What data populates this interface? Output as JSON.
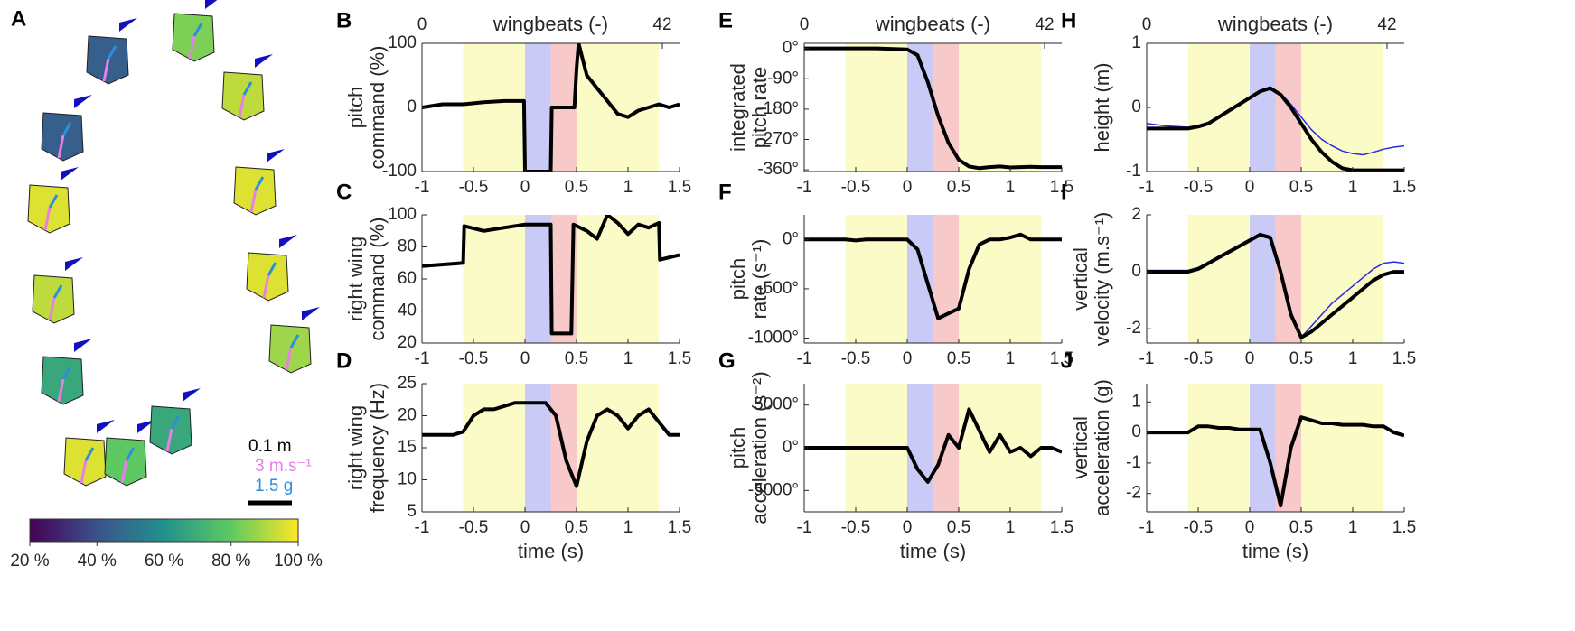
{
  "panel_a": {
    "label": "A",
    "scale_labels": [
      "0.1 m",
      "3 m.s⁻¹",
      "1.5 g"
    ],
    "colorbar": {
      "lim": [
        20,
        100
      ],
      "ticks": [
        {
          "value": 20,
          "label": "20 %"
        },
        {
          "value": 40,
          "label": "40 %"
        },
        {
          "value": 60,
          "label": "60 %"
        },
        {
          "value": 80,
          "label": "80 %"
        },
        {
          "value": 100,
          "label": "100 %"
        }
      ]
    }
  },
  "chart_data": [
    {
      "type": "line",
      "label": "B",
      "ylabel": [
        "pitch",
        "command (%)"
      ],
      "x2label": "wingbeats (-)",
      "x2lim": [
        0,
        45
      ],
      "x2ticks": [
        0,
        42
      ],
      "xlim": [
        -1,
        1.5
      ],
      "xticks": [
        -1,
        -0.5,
        0,
        0.5,
        1,
        1.5
      ],
      "ylim": [
        -100,
        100
      ],
      "yticks": [
        -100,
        0,
        100
      ],
      "regions": [
        {
          "start": -0.6,
          "end": 0,
          "color": "#fbfbc8"
        },
        {
          "start": 0,
          "end": 0.25,
          "color": "#cacaf6"
        },
        {
          "start": 0.25,
          "end": 0.5,
          "color": "#f8c9c9"
        },
        {
          "start": 0.5,
          "end": 1.3,
          "color": "#fbfbc8"
        }
      ],
      "x": [
        -1,
        -0.8,
        -0.6,
        -0.4,
        -0.2,
        -0.01,
        0,
        0.25,
        0.26,
        0.48,
        0.5,
        0.52,
        0.6,
        0.7,
        0.8,
        0.9,
        1.0,
        1.1,
        1.2,
        1.3,
        1.4,
        1.5
      ],
      "series": [
        {
          "color": "#000000",
          "values": [
            0,
            5,
            5,
            8,
            10,
            10,
            -100,
            -100,
            0,
            0,
            60,
            100,
            50,
            30,
            10,
            -10,
            -15,
            -5,
            0,
            5,
            0,
            5
          ]
        }
      ]
    },
    {
      "type": "line",
      "label": "C",
      "ylabel": [
        "right wing",
        "command (%)"
      ],
      "xlim": [
        -1,
        1.5
      ],
      "xticks": [
        -1,
        -0.5,
        0,
        0.5,
        1,
        1.5
      ],
      "ylim": [
        20,
        100
      ],
      "yticks": [
        20,
        40,
        60,
        80,
        100
      ],
      "regions": [
        {
          "start": -0.6,
          "end": 0,
          "color": "#fbfbc8"
        },
        {
          "start": 0,
          "end": 0.25,
          "color": "#cacaf6"
        },
        {
          "start": 0.25,
          "end": 0.5,
          "color": "#f8c9c9"
        },
        {
          "start": 0.5,
          "end": 1.3,
          "color": "#fbfbc8"
        }
      ],
      "x": [
        -1,
        -0.6,
        -0.59,
        -0.4,
        -0.2,
        0,
        0.25,
        0.26,
        0.45,
        0.47,
        0.6,
        0.7,
        0.8,
        0.9,
        1.0,
        1.1,
        1.2,
        1.3,
        1.31,
        1.5
      ],
      "series": [
        {
          "color": "#000000",
          "values": [
            68,
            70,
            93,
            90,
            92,
            94,
            94,
            26,
            26,
            94,
            90,
            85,
            100,
            95,
            88,
            94,
            92,
            95,
            72,
            75
          ]
        }
      ]
    },
    {
      "type": "line",
      "label": "D",
      "ylabel": [
        "right wing",
        "frequency (Hz)"
      ],
      "xlabel": "time (s)",
      "xlim": [
        -1,
        1.5
      ],
      "xticks": [
        -1,
        -0.5,
        0,
        0.5,
        1,
        1.5
      ],
      "ylim": [
        5,
        25
      ],
      "yticks": [
        5,
        10,
        15,
        20,
        25
      ],
      "regions": [
        {
          "start": -0.6,
          "end": 0,
          "color": "#fbfbc8"
        },
        {
          "start": 0,
          "end": 0.25,
          "color": "#cacaf6"
        },
        {
          "start": 0.25,
          "end": 0.5,
          "color": "#f8c9c9"
        },
        {
          "start": 0.5,
          "end": 1.3,
          "color": "#fbfbc8"
        }
      ],
      "x": [
        -1,
        -0.9,
        -0.8,
        -0.7,
        -0.6,
        -0.5,
        -0.4,
        -0.3,
        -0.2,
        -0.1,
        0,
        0.1,
        0.2,
        0.3,
        0.4,
        0.5,
        0.6,
        0.7,
        0.8,
        0.9,
        1.0,
        1.1,
        1.2,
        1.3,
        1.4,
        1.5
      ],
      "series": [
        {
          "color": "#000000",
          "values": [
            17,
            17,
            17,
            17,
            17.5,
            20,
            21,
            21,
            21.5,
            22,
            22,
            22,
            22,
            20,
            13,
            9,
            16,
            20,
            21,
            20,
            18,
            20,
            21,
            19,
            17,
            17
          ]
        }
      ]
    },
    {
      "type": "line",
      "label": "E",
      "ylabel": [
        "integrated",
        "pitch rate"
      ],
      "x2label": "wingbeats (-)",
      "x2lim": [
        0,
        45
      ],
      "x2ticks": [
        0,
        42
      ],
      "xlim": [
        -1,
        1.5
      ],
      "xticks": [
        -1,
        -0.5,
        0,
        0.5,
        1,
        1.5
      ],
      "ylim": [
        -365,
        15
      ],
      "yticks": [
        {
          "value": 0,
          "label": "0°"
        },
        {
          "value": -90,
          "label": "-90°"
        },
        {
          "value": -180,
          "label": "-180°"
        },
        {
          "value": -270,
          "label": "-270°"
        },
        {
          "value": -360,
          "label": "-360°"
        }
      ],
      "regions": [
        {
          "start": -0.6,
          "end": 0,
          "color": "#fbfbc8"
        },
        {
          "start": 0,
          "end": 0.25,
          "color": "#cacaf6"
        },
        {
          "start": 0.25,
          "end": 0.5,
          "color": "#f8c9c9"
        },
        {
          "start": 0.5,
          "end": 1.3,
          "color": "#fbfbc8"
        }
      ],
      "x": [
        -1,
        -0.9,
        -0.8,
        -0.7,
        -0.6,
        -0.5,
        -0.4,
        -0.3,
        -0.2,
        -0.1,
        0,
        0.1,
        0.2,
        0.3,
        0.4,
        0.5,
        0.6,
        0.7,
        0.8,
        0.9,
        1.0,
        1.1,
        1.2,
        1.3,
        1.4,
        1.5
      ],
      "series": [
        {
          "color": "#000000",
          "values": [
            0,
            0,
            0,
            0,
            0,
            0,
            0,
            0,
            -1,
            -2,
            -3,
            -20,
            -100,
            -200,
            -280,
            -330,
            -350,
            -355,
            -352,
            -350,
            -353,
            -352,
            -351,
            -352,
            -352,
            -352
          ]
        }
      ]
    },
    {
      "type": "line",
      "label": "F",
      "ylabel": [
        "pitch",
        "rate (s⁻¹)"
      ],
      "xlim": [
        -1,
        1.5
      ],
      "xticks": [
        -1,
        -0.5,
        0,
        0.5,
        1,
        1.5
      ],
      "ylim": [
        -1050,
        250
      ],
      "yticks": [
        {
          "value": -1000,
          "label": "-1000°"
        },
        {
          "value": -500,
          "label": "-500°"
        },
        {
          "value": 0,
          "label": "0°"
        }
      ],
      "regions": [
        {
          "start": -0.6,
          "end": 0,
          "color": "#fbfbc8"
        },
        {
          "start": 0,
          "end": 0.25,
          "color": "#cacaf6"
        },
        {
          "start": 0.25,
          "end": 0.5,
          "color": "#f8c9c9"
        },
        {
          "start": 0.5,
          "end": 1.3,
          "color": "#fbfbc8"
        }
      ],
      "x": [
        -1,
        -0.9,
        -0.8,
        -0.7,
        -0.6,
        -0.5,
        -0.4,
        -0.3,
        -0.2,
        -0.1,
        0,
        0.1,
        0.2,
        0.3,
        0.4,
        0.5,
        0.6,
        0.7,
        0.8,
        0.9,
        1.0,
        1.1,
        1.2,
        1.3,
        1.4,
        1.5
      ],
      "series": [
        {
          "color": "#000000",
          "values": [
            0,
            0,
            0,
            0,
            0,
            -10,
            0,
            0,
            0,
            0,
            0,
            -100,
            -450,
            -800,
            -750,
            -700,
            -300,
            -50,
            0,
            0,
            20,
            50,
            0,
            0,
            0,
            0
          ]
        }
      ]
    },
    {
      "type": "line",
      "label": "G",
      "ylabel": [
        "pitch",
        "acceleration (s⁻²)"
      ],
      "xlabel": "time (s)",
      "xlim": [
        -1,
        1.5
      ],
      "xticks": [
        -1,
        -0.5,
        0,
        0.5,
        1,
        1.5
      ],
      "ylim": [
        -7500,
        7500
      ],
      "yticks": [
        {
          "value": -5000,
          "label": "-5000°"
        },
        {
          "value": 0,
          "label": "0°"
        },
        {
          "value": 5000,
          "label": "5000°"
        }
      ],
      "regions": [
        {
          "start": -0.6,
          "end": 0,
          "color": "#fbfbc8"
        },
        {
          "start": 0,
          "end": 0.25,
          "color": "#cacaf6"
        },
        {
          "start": 0.25,
          "end": 0.5,
          "color": "#f8c9c9"
        },
        {
          "start": 0.5,
          "end": 1.3,
          "color": "#fbfbc8"
        }
      ],
      "x": [
        -1,
        -0.9,
        -0.8,
        -0.7,
        -0.6,
        -0.5,
        -0.4,
        -0.3,
        -0.2,
        -0.1,
        0,
        0.1,
        0.2,
        0.3,
        0.4,
        0.5,
        0.6,
        0.7,
        0.8,
        0.9,
        1.0,
        1.1,
        1.2,
        1.3,
        1.4,
        1.5
      ],
      "series": [
        {
          "color": "#000000",
          "values": [
            0,
            0,
            0,
            0,
            0,
            0,
            0,
            0,
            0,
            0,
            0,
            -2500,
            -4000,
            -2000,
            1500,
            0,
            4500,
            2000,
            -500,
            1500,
            -500,
            0,
            -1000,
            0,
            0,
            -500
          ]
        }
      ]
    },
    {
      "type": "line",
      "label": "H",
      "ylabel": [
        "height (m)"
      ],
      "x2label": "wingbeats (-)",
      "x2lim": [
        0,
        45
      ],
      "x2ticks": [
        0,
        42
      ],
      "xlim": [
        -1,
        1.5
      ],
      "xticks": [
        -1,
        -0.5,
        0,
        0.5,
        1,
        1.5
      ],
      "ylim": [
        -1,
        1
      ],
      "yticks": [
        -1,
        0,
        1
      ],
      "regions": [
        {
          "start": -0.6,
          "end": 0,
          "color": "#fbfbc8"
        },
        {
          "start": 0,
          "end": 0.25,
          "color": "#cacaf6"
        },
        {
          "start": 0.25,
          "end": 0.5,
          "color": "#f8c9c9"
        },
        {
          "start": 0.5,
          "end": 1.3,
          "color": "#fbfbc8"
        }
      ],
      "x": [
        -1,
        -0.9,
        -0.8,
        -0.7,
        -0.6,
        -0.5,
        -0.4,
        -0.3,
        -0.2,
        -0.1,
        0,
        0.1,
        0.2,
        0.3,
        0.4,
        0.5,
        0.6,
        0.7,
        0.8,
        0.9,
        1.0,
        1.1,
        1.2,
        1.3,
        1.4,
        1.5
      ],
      "series": [
        {
          "color": "#2a2ae0",
          "values": [
            -0.25,
            -0.27,
            -0.29,
            -0.3,
            -0.31,
            -0.28,
            -0.23,
            -0.14,
            -0.04,
            0.06,
            0.16,
            0.26,
            0.3,
            0.22,
            0.05,
            -0.15,
            -0.35,
            -0.5,
            -0.6,
            -0.68,
            -0.72,
            -0.74,
            -0.7,
            -0.65,
            -0.62,
            -0.6
          ]
        },
        {
          "color": "#000000",
          "values": [
            -0.33,
            -0.33,
            -0.33,
            -0.33,
            -0.33,
            -0.3,
            -0.25,
            -0.15,
            -0.05,
            0.05,
            0.15,
            0.25,
            0.3,
            0.2,
            0.0,
            -0.25,
            -0.5,
            -0.7,
            -0.85,
            -0.95,
            -0.98,
            -0.98,
            -0.98,
            -0.98,
            -0.98,
            -0.98
          ]
        }
      ]
    },
    {
      "type": "line",
      "label": "I",
      "ylabel": [
        "vertical",
        "velocity (m.s⁻¹)"
      ],
      "xlim": [
        -1,
        1.5
      ],
      "xticks": [
        -1,
        -0.5,
        0,
        0.5,
        1,
        1.5
      ],
      "ylim": [
        -2.5,
        2
      ],
      "yticks": [
        -2,
        0,
        2
      ],
      "regions": [
        {
          "start": -0.6,
          "end": 0,
          "color": "#fbfbc8"
        },
        {
          "start": 0,
          "end": 0.25,
          "color": "#cacaf6"
        },
        {
          "start": 0.25,
          "end": 0.5,
          "color": "#f8c9c9"
        },
        {
          "start": 0.5,
          "end": 1.3,
          "color": "#fbfbc8"
        }
      ],
      "x": [
        -1,
        -0.9,
        -0.8,
        -0.7,
        -0.6,
        -0.5,
        -0.4,
        -0.3,
        -0.2,
        -0.1,
        0,
        0.1,
        0.2,
        0.3,
        0.4,
        0.5,
        0.6,
        0.7,
        0.8,
        0.9,
        1.0,
        1.1,
        1.2,
        1.3,
        1.4,
        1.5
      ],
      "series": [
        {
          "color": "#2a2ae0",
          "values": [
            0.05,
            0.05,
            0.05,
            0.05,
            0.05,
            0.15,
            0.35,
            0.55,
            0.75,
            0.95,
            1.15,
            1.35,
            1.25,
            0,
            -1.4,
            -2.3,
            -1.9,
            -1.5,
            -1.1,
            -0.8,
            -0.5,
            -0.2,
            0.1,
            0.3,
            0.35,
            0.3
          ]
        },
        {
          "color": "#000000",
          "values": [
            0,
            0,
            0,
            0,
            0,
            0.1,
            0.3,
            0.5,
            0.7,
            0.9,
            1.1,
            1.3,
            1.2,
            0,
            -1.5,
            -2.3,
            -2.1,
            -1.8,
            -1.5,
            -1.2,
            -0.9,
            -0.6,
            -0.3,
            -0.1,
            0,
            0
          ]
        }
      ]
    },
    {
      "type": "line",
      "label": "J",
      "ylabel": [
        "vertical",
        "acceleration (g)"
      ],
      "xlabel": "time (s)",
      "xlim": [
        -1,
        1.5
      ],
      "xticks": [
        -1,
        -0.5,
        0,
        0.5,
        1,
        1.5
      ],
      "ylim": [
        -2.6,
        1.6
      ],
      "yticks": [
        -2,
        -1,
        0,
        1
      ],
      "regions": [
        {
          "start": -0.6,
          "end": 0,
          "color": "#fbfbc8"
        },
        {
          "start": 0,
          "end": 0.25,
          "color": "#cacaf6"
        },
        {
          "start": 0.25,
          "end": 0.5,
          "color": "#f8c9c9"
        },
        {
          "start": 0.5,
          "end": 1.3,
          "color": "#fbfbc8"
        }
      ],
      "x": [
        -1,
        -0.9,
        -0.8,
        -0.7,
        -0.6,
        -0.5,
        -0.4,
        -0.3,
        -0.2,
        -0.1,
        0,
        0.1,
        0.2,
        0.3,
        0.4,
        0.5,
        0.6,
        0.7,
        0.8,
        0.9,
        1.0,
        1.1,
        1.2,
        1.3,
        1.4,
        1.5
      ],
      "series": [
        {
          "color": "#000000",
          "values": [
            0,
            0,
            0,
            0,
            0,
            0.2,
            0.2,
            0.15,
            0.15,
            0.1,
            0.1,
            0.1,
            -1,
            -2.4,
            -0.5,
            0.5,
            0.4,
            0.3,
            0.3,
            0.25,
            0.25,
            0.25,
            0.2,
            0.2,
            0,
            -0.1
          ]
        }
      ]
    }
  ]
}
